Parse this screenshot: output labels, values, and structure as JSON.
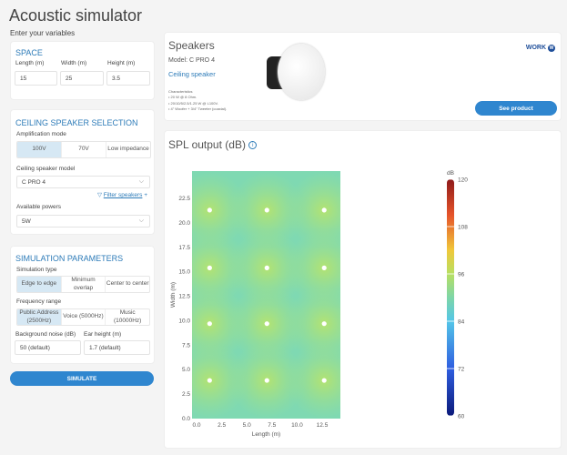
{
  "title": "Acoustic simulator",
  "subtitle": "Enter your variables",
  "space": {
    "title": "SPACE",
    "length_label": "Length (m)",
    "width_label": "Width (m)",
    "height_label": "Height (m)",
    "length": "15",
    "width": "25",
    "height": "3.5"
  },
  "ceiling": {
    "title": "CEILING SPEAKER SELECTION",
    "amp_label": "Amplification mode",
    "amp_options": [
      "100V",
      "70V",
      "Low impedance"
    ],
    "model_label": "Ceiling speaker model",
    "model": "C PRO 4",
    "filter": "Filter speakers",
    "powers_label": "Available powers",
    "power": "5W"
  },
  "simparams": {
    "title": "SIMULATION PARAMETERS",
    "type_label": "Simulation type",
    "types": [
      "Edge to edge",
      "Minimum overlap",
      "Center to center"
    ],
    "freq_label": "Frequency range",
    "freqs": [
      "Public Address (2500Hz)",
      "Voice (5000Hz)",
      "Music (10000Hz)"
    ],
    "noise_label": "Background noise (dB)",
    "noise": "50 (default)",
    "ear_label": "Ear height (m)",
    "ear": "1.7 (default)"
  },
  "simulate": "SIMULATE",
  "speaker": {
    "title": "Speakers",
    "model": "Model: C PRO 4",
    "type": "Ceiling speaker",
    "char_title": "Characteristics",
    "chars": [
      "• 20 W @ 8 Ohm.",
      "• 20/10/5/2.5/1.25 W @ L100V.",
      "• 4\" Woofer + 3/4\" Tweeter (coaxial)."
    ],
    "brand": "WORK",
    "see": "See product"
  },
  "spl": {
    "title": "SPL output (dB)",
    "info_icon": "info-icon"
  },
  "chart_data": {
    "type": "heatmap",
    "xlabel": "Length (m)",
    "ylabel": "Width (m)",
    "xlim": [
      0,
      15
    ],
    "ylim": [
      0,
      25
    ],
    "xticks": [
      "0.0",
      "2.5",
      "5.0",
      "7.5",
      "10.0",
      "12.5"
    ],
    "yticks": [
      "0.0",
      "2.5",
      "5.0",
      "7.5",
      "10.0",
      "12.5",
      "15.0",
      "17.5",
      "20.0",
      "22.5"
    ],
    "speakers_x": [
      1.3,
      7.0,
      12.7
    ],
    "speakers_y": [
      3.9,
      9.7,
      15.4,
      21.3
    ],
    "colorbar": {
      "label": "dB",
      "min": 60,
      "max": 120,
      "ticks": [
        "120",
        "108",
        "96",
        "84",
        "72",
        "60"
      ]
    }
  }
}
